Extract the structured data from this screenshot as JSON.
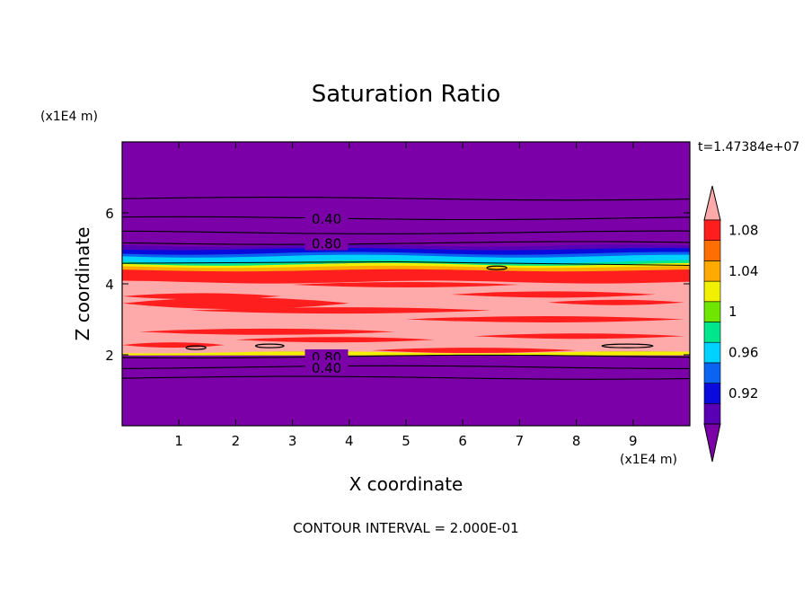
{
  "chart_data": {
    "type": "heatmap",
    "title": "Saturation Ratio",
    "xlabel": "X coordinate",
    "ylabel": "Z coordinate",
    "x_unit": "(x1E4 m)",
    "y_unit": "(x1E4 m)",
    "time_label": "t=1.47384e+07",
    "footer": "CONTOUR INTERVAL = 2.000E-01",
    "xlim": [
      0,
      10
    ],
    "ylim": [
      0,
      8
    ],
    "x_ticks": [
      1,
      2,
      3,
      4,
      5,
      6,
      7,
      8,
      9
    ],
    "y_ticks": [
      2,
      4,
      6
    ],
    "colorbar": {
      "levels": [
        0.9,
        0.92,
        0.94,
        0.96,
        0.98,
        1.0,
        1.02,
        1.04,
        1.06,
        1.08,
        1.1
      ],
      "tick_labels": [
        "0.92",
        "0.96",
        "1",
        "1.04",
        "1.08"
      ],
      "tick_values": [
        0.92,
        0.96,
        1.0,
        1.04,
        1.08
      ],
      "colors": [
        "#7b00a8",
        "#5a00b4",
        "#0a0adc",
        "#0a64f0",
        "#00d2ff",
        "#00e68c",
        "#6ee600",
        "#f0f000",
        "#ffaa00",
        "#ff6e00",
        "#ff1e1e",
        "#ffaaaa"
      ]
    },
    "bands": [
      {
        "z": [
          0.0,
          1.3
        ],
        "level": "below"
      },
      {
        "z": [
          1.3,
          2.0
        ],
        "level": "below"
      },
      {
        "z": [
          2.0,
          2.1
        ],
        "level": "1.02-1.04"
      },
      {
        "z": [
          2.1,
          4.1
        ],
        "level": "above"
      },
      {
        "z": [
          4.1,
          4.45
        ],
        "level": "1.08-1.10"
      },
      {
        "z": [
          4.45,
          4.6
        ],
        "level": "1.02-1.06"
      },
      {
        "z": [
          4.6,
          4.8
        ],
        "level": "0.96-1.00"
      },
      {
        "z": [
          4.8,
          5.0
        ],
        "level": "0.92-0.96"
      },
      {
        "z": [
          5.0,
          8.0
        ],
        "level": "below"
      }
    ],
    "contours": [
      {
        "z": 6.4,
        "label": ""
      },
      {
        "z": 5.85,
        "label": "0.40"
      },
      {
        "z": 5.45,
        "label": ""
      },
      {
        "z": 5.15,
        "label": "0.80"
      },
      {
        "z": 1.95,
        "label": "0.80"
      },
      {
        "z": 1.65,
        "label": "0.40"
      },
      {
        "z": 1.35,
        "label": ""
      }
    ]
  }
}
